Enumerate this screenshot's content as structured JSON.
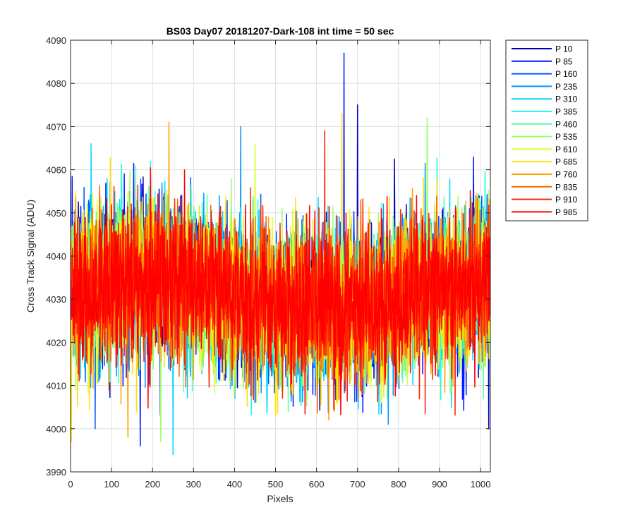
{
  "chart_data": {
    "type": "line",
    "title": "BS03 Day07 20181207-Dark-108 int time = 50 sec",
    "xlabel": "Pixels",
    "ylabel": "Cross Track Signal (ADU)",
    "xlim": [
      0,
      1024
    ],
    "ylim": [
      3990,
      4090
    ],
    "xticks": [
      0,
      100,
      200,
      300,
      400,
      500,
      600,
      700,
      800,
      900,
      1000
    ],
    "yticks": [
      3990,
      4000,
      4010,
      4020,
      4030,
      4040,
      4050,
      4060,
      4070,
      4080,
      4090
    ],
    "grid": true,
    "legend_position": "outside-top-right",
    "series": [
      {
        "name": "P 10",
        "color": "#0000B3",
        "seed": 11,
        "peaks": [
          [
            700,
            4075
          ],
          [
            1020,
            4000
          ]
        ]
      },
      {
        "name": "P 85",
        "color": "#0018FF",
        "seed": 23,
        "peaks": [
          [
            667,
            4087
          ],
          [
            170,
            3996
          ]
        ]
      },
      {
        "name": "P 160",
        "color": "#0058FF",
        "seed": 37,
        "peaks": [
          [
            60,
            4000
          ]
        ]
      },
      {
        "name": "P 235",
        "color": "#0098FF",
        "seed": 41,
        "peaks": [
          [
            415,
            4070
          ],
          [
            775,
            4001
          ]
        ]
      },
      {
        "name": "P 310",
        "color": "#00D8FF",
        "seed": 53,
        "peaks": [
          [
            50,
            4066
          ],
          [
            250,
            3994
          ]
        ]
      },
      {
        "name": "P 385",
        "color": "#1CFFE2",
        "seed": 67,
        "peaks": [
          [
            870,
            4070
          ]
        ]
      },
      {
        "name": "P 460",
        "color": "#5CFFA2",
        "seed": 71,
        "peaks": []
      },
      {
        "name": "P 535",
        "color": "#9CFF62",
        "seed": 83,
        "peaks": [
          [
            870,
            4072
          ],
          [
            220,
            3997
          ]
        ]
      },
      {
        "name": "P 610",
        "color": "#DCFF22",
        "seed": 97,
        "peaks": [
          [
            450,
            4066
          ]
        ]
      },
      {
        "name": "P 685",
        "color": "#FFE200",
        "seed": 101,
        "peaks": [
          [
            662,
            4073
          ],
          [
            2,
            3997
          ]
        ]
      },
      {
        "name": "P 760",
        "color": "#FFA200",
        "seed": 113,
        "peaks": [
          [
            240,
            4071
          ],
          [
            630,
            4002
          ],
          [
            140,
            3998
          ]
        ]
      },
      {
        "name": "P 835",
        "color": "#FF6200",
        "seed": 127,
        "peaks": []
      },
      {
        "name": "P 910",
        "color": "#FF2200",
        "seed": 131,
        "peaks": [
          [
            620,
            4069
          ]
        ]
      },
      {
        "name": "P 985",
        "color": "#FF0000",
        "seed": 139,
        "peaks": []
      }
    ]
  }
}
